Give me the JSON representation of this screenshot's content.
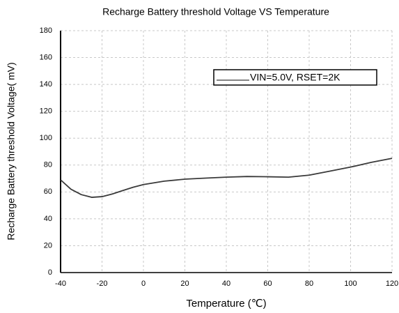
{
  "chart_data": {
    "type": "line",
    "title": "Recharge Battery threshold Voltage VS Temperature",
    "x_label": "Temperature (℃)",
    "y_label": "Recharge Battery threshold Voltage( mV)",
    "x": [
      -40,
      -35,
      -30,
      -25,
      -20,
      -15,
      -10,
      -5,
      0,
      10,
      20,
      30,
      40,
      50,
      60,
      70,
      80,
      90,
      100,
      110,
      120
    ],
    "series": [
      {
        "name": "VIN=5.0V, RSET=2K",
        "color": "#3a3a3a",
        "values": [
          69,
          62,
          58,
          56,
          56.5,
          58.5,
          61,
          63.5,
          65.5,
          68,
          69.5,
          70.3,
          71,
          71.5,
          71.3,
          71,
          72.5,
          75.5,
          78.5,
          82,
          85
        ]
      }
    ],
    "xlim": [
      -40,
      120
    ],
    "xticks": [
      -40,
      -20,
      0,
      20,
      40,
      60,
      80,
      100,
      120
    ],
    "ylim": [
      0,
      180
    ],
    "yticks": [
      0,
      20,
      40,
      60,
      80,
      100,
      120,
      140,
      160,
      180
    ],
    "grid": true
  }
}
